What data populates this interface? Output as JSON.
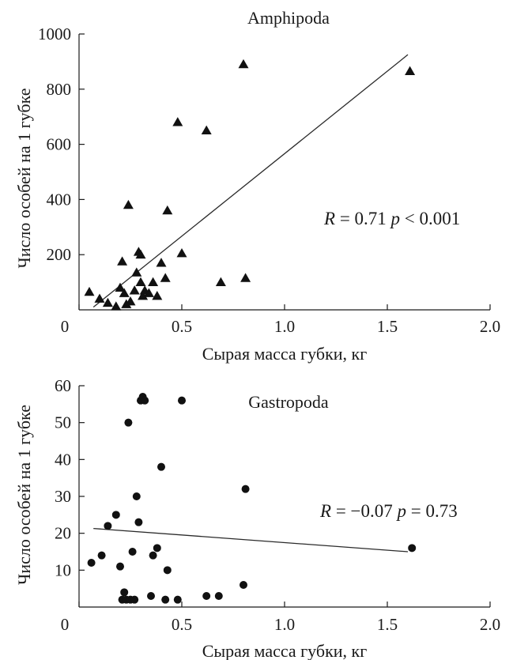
{
  "chart_data": [
    {
      "id": "amphipoda",
      "type": "scatter",
      "title": "Amphipoda",
      "xlabel": "Сырая масса губки, кг",
      "ylabel": "Число особей на 1 губке",
      "xlim": [
        0,
        2.0
      ],
      "ylim": [
        0,
        1000
      ],
      "x_ticks": [
        "0",
        "0.5",
        "1.0",
        "1.5",
        "2.0"
      ],
      "x_tick_values": [
        0,
        0.5,
        1.0,
        1.5,
        2.0
      ],
      "y_ticks": [
        "200",
        "400",
        "600",
        "800",
        "1000"
      ],
      "y_tick_values": [
        200,
        400,
        600,
        800,
        1000
      ],
      "marker": "triangle",
      "annotation_parts": [
        "R",
        " = 0.71 ",
        "p",
        " < 0.001"
      ],
      "fit_line": {
        "x": [
          0.07,
          1.6
        ],
        "y": [
          10,
          925
        ]
      },
      "points": {
        "x": [
          0.05,
          0.1,
          0.14,
          0.18,
          0.2,
          0.21,
          0.22,
          0.23,
          0.24,
          0.25,
          0.27,
          0.28,
          0.29,
          0.3,
          0.3,
          0.31,
          0.32,
          0.34,
          0.36,
          0.38,
          0.4,
          0.42,
          0.43,
          0.48,
          0.5,
          0.62,
          0.69,
          0.8,
          0.81,
          1.61
        ],
        "y": [
          65,
          40,
          25,
          12,
          80,
          175,
          60,
          20,
          380,
          30,
          70,
          135,
          210,
          100,
          200,
          50,
          70,
          60,
          100,
          50,
          170,
          115,
          360,
          680,
          205,
          650,
          100,
          890,
          115,
          865
        ]
      }
    },
    {
      "id": "gastropoda",
      "type": "scatter",
      "title": "Gastropoda",
      "xlabel": "Сырая масса губки, кг",
      "ylabel": "Число особей на 1 губке",
      "xlim": [
        0,
        2.0
      ],
      "ylim": [
        0,
        60
      ],
      "x_ticks": [
        "0",
        "0.5",
        "1.0",
        "1.5",
        "2.0"
      ],
      "x_tick_values": [
        0,
        0.5,
        1.0,
        1.5,
        2.0
      ],
      "y_ticks": [
        "10",
        "20",
        "30",
        "40",
        "50",
        "60"
      ],
      "y_tick_values": [
        10,
        20,
        30,
        40,
        50,
        60
      ],
      "marker": "circle",
      "annotation_parts": [
        "R",
        " = −0.07 ",
        "p",
        " = 0.73"
      ],
      "fit_line": {
        "x": [
          0.07,
          1.6
        ],
        "y": [
          21.3,
          15
        ]
      },
      "points": {
        "x": [
          0.06,
          0.11,
          0.14,
          0.18,
          0.2,
          0.21,
          0.22,
          0.23,
          0.24,
          0.25,
          0.26,
          0.27,
          0.28,
          0.29,
          0.3,
          0.31,
          0.32,
          0.35,
          0.36,
          0.38,
          0.4,
          0.42,
          0.43,
          0.48,
          0.5,
          0.62,
          0.68,
          0.8,
          0.81,
          1.62
        ],
        "y": [
          12,
          14,
          22,
          25,
          11,
          2,
          4,
          2,
          50,
          2,
          15,
          2,
          30,
          23,
          56,
          57,
          56,
          3,
          14,
          16,
          38,
          2,
          10,
          2,
          56,
          3,
          3,
          6,
          32,
          16
        ]
      }
    }
  ]
}
